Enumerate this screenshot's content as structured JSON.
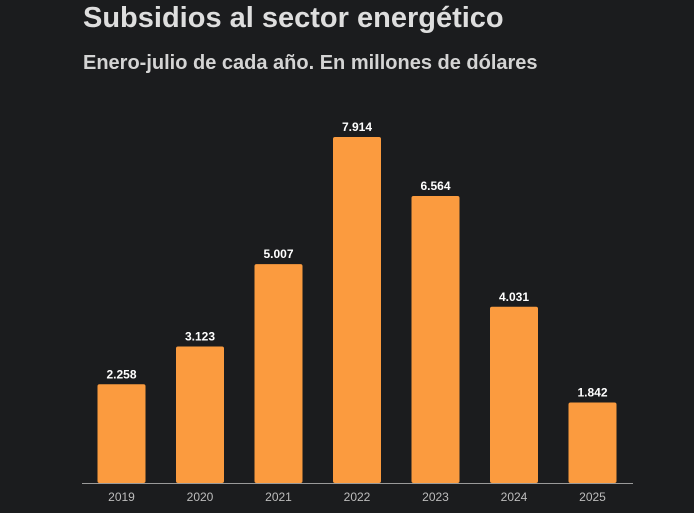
{
  "header": {
    "title": "Subsidios al sector energético",
    "subtitle": "Enero-julio de cada año. En millones de dólares"
  },
  "colors": {
    "background": "#1b1c1e",
    "bar": "#fb9b3f",
    "axis": "#9a9a9a",
    "text": "#dedede"
  },
  "chart_data": {
    "type": "bar",
    "title": "Subsidios al sector energético",
    "subtitle": "Enero-julio de cada año. En millones de dólares",
    "categories": [
      "2019",
      "2020",
      "2021",
      "2022",
      "2023",
      "2024",
      "2025"
    ],
    "values": [
      2258,
      3123,
      5007,
      7914,
      6564,
      4031,
      1842
    ],
    "value_labels": [
      "2.258",
      "3.123",
      "5.007",
      "7.914",
      "6.564",
      "4.031",
      "1.842"
    ],
    "xlabel": "",
    "ylabel": "",
    "ylim": [
      0,
      7914
    ],
    "grid": false,
    "legend": "none"
  }
}
